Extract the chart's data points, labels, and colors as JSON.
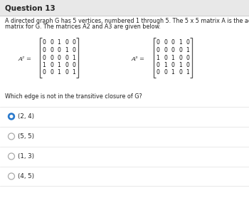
{
  "title": "Question 13",
  "background_color": "#f2f2f2",
  "content_bg": "#ffffff",
  "body_line1": "A directed graph G has 5 vertices, numbered 1 through 5. The 5 x 5 matrix A is the adjacency",
  "body_line2": "matrix for G. The matrices A2 and A3 are given below.",
  "A2_label": "A² =",
  "A3_label": "A³ =",
  "A2": [
    [
      0,
      0,
      1,
      0,
      0
    ],
    [
      0,
      0,
      0,
      1,
      0
    ],
    [
      0,
      0,
      0,
      0,
      1
    ],
    [
      1,
      0,
      1,
      0,
      0
    ],
    [
      0,
      0,
      1,
      0,
      1
    ]
  ],
  "A3": [
    [
      0,
      0,
      0,
      1,
      0
    ],
    [
      0,
      0,
      0,
      0,
      1
    ],
    [
      1,
      0,
      1,
      0,
      0
    ],
    [
      0,
      1,
      0,
      1,
      0
    ],
    [
      0,
      0,
      1,
      0,
      1
    ]
  ],
  "question": "Which edge is not in the transitive closure of G?",
  "options": [
    "(2, 4)",
    "(5, 5)",
    "(1, 3)",
    "(4, 5)"
  ],
  "selected": 0,
  "title_fontsize": 7.5,
  "body_fontsize": 5.8,
  "matrix_fontsize": 5.5,
  "question_fontsize": 5.8,
  "option_fontsize": 6.2,
  "title_bar_color": "#e8e8e8",
  "separator_color": "#cccccc",
  "option_sep_color": "#e0e0e0",
  "selected_color": "#2979cc",
  "radio_color": "#aaaaaa",
  "text_color": "#222222",
  "bracket_color": "#555555"
}
